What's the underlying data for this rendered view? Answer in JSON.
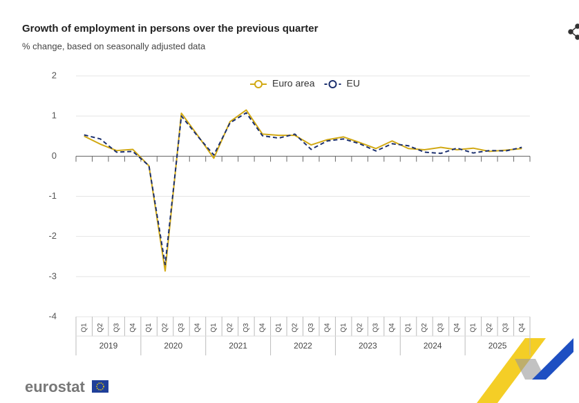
{
  "chart_data": {
    "type": "line",
    "title": "Growth of employment in persons over the previous quarter",
    "subtitle": "% change, based on seasonally adjusted data",
    "categories": [
      "Q1",
      "Q2",
      "Q3",
      "Q4",
      "Q1",
      "Q2",
      "Q3",
      "Q4",
      "Q1",
      "Q2",
      "Q3",
      "Q4",
      "Q1",
      "Q2",
      "Q3",
      "Q4",
      "Q1",
      "Q2",
      "Q3",
      "Q4",
      "Q1",
      "Q2",
      "Q3",
      "Q4",
      "Q1",
      "Q2",
      "Q3",
      "Q4"
    ],
    "years": [
      "2019",
      "2020",
      "2021",
      "2022",
      "2023",
      "2024",
      "2025"
    ],
    "series": [
      {
        "name": "Euro area",
        "color": "#d1a812",
        "dash": false,
        "values": [
          0.5,
          0.3,
          0.14,
          0.17,
          -0.24,
          -2.86,
          1.07,
          0.52,
          -0.05,
          0.86,
          1.15,
          0.55,
          0.52,
          0.52,
          0.28,
          0.41,
          0.48,
          0.34,
          0.19,
          0.38,
          0.19,
          0.16,
          0.22,
          0.16,
          0.2,
          0.12,
          0.15,
          0.19
        ]
      },
      {
        "name": "EU",
        "color": "#1b2f6e",
        "dash": true,
        "values": [
          0.53,
          0.43,
          0.1,
          0.12,
          -0.24,
          -2.7,
          1.0,
          0.5,
          0.03,
          0.83,
          1.08,
          0.51,
          0.45,
          0.55,
          0.17,
          0.38,
          0.43,
          0.31,
          0.13,
          0.31,
          0.26,
          0.1,
          0.07,
          0.2,
          0.08,
          0.14,
          0.13,
          0.22
        ]
      }
    ],
    "ylim": [
      -4,
      2
    ],
    "yticks": [
      -4,
      -3,
      -2,
      -1,
      0,
      1,
      2
    ],
    "grid": true,
    "legend": "top",
    "brand": "eurostat"
  }
}
